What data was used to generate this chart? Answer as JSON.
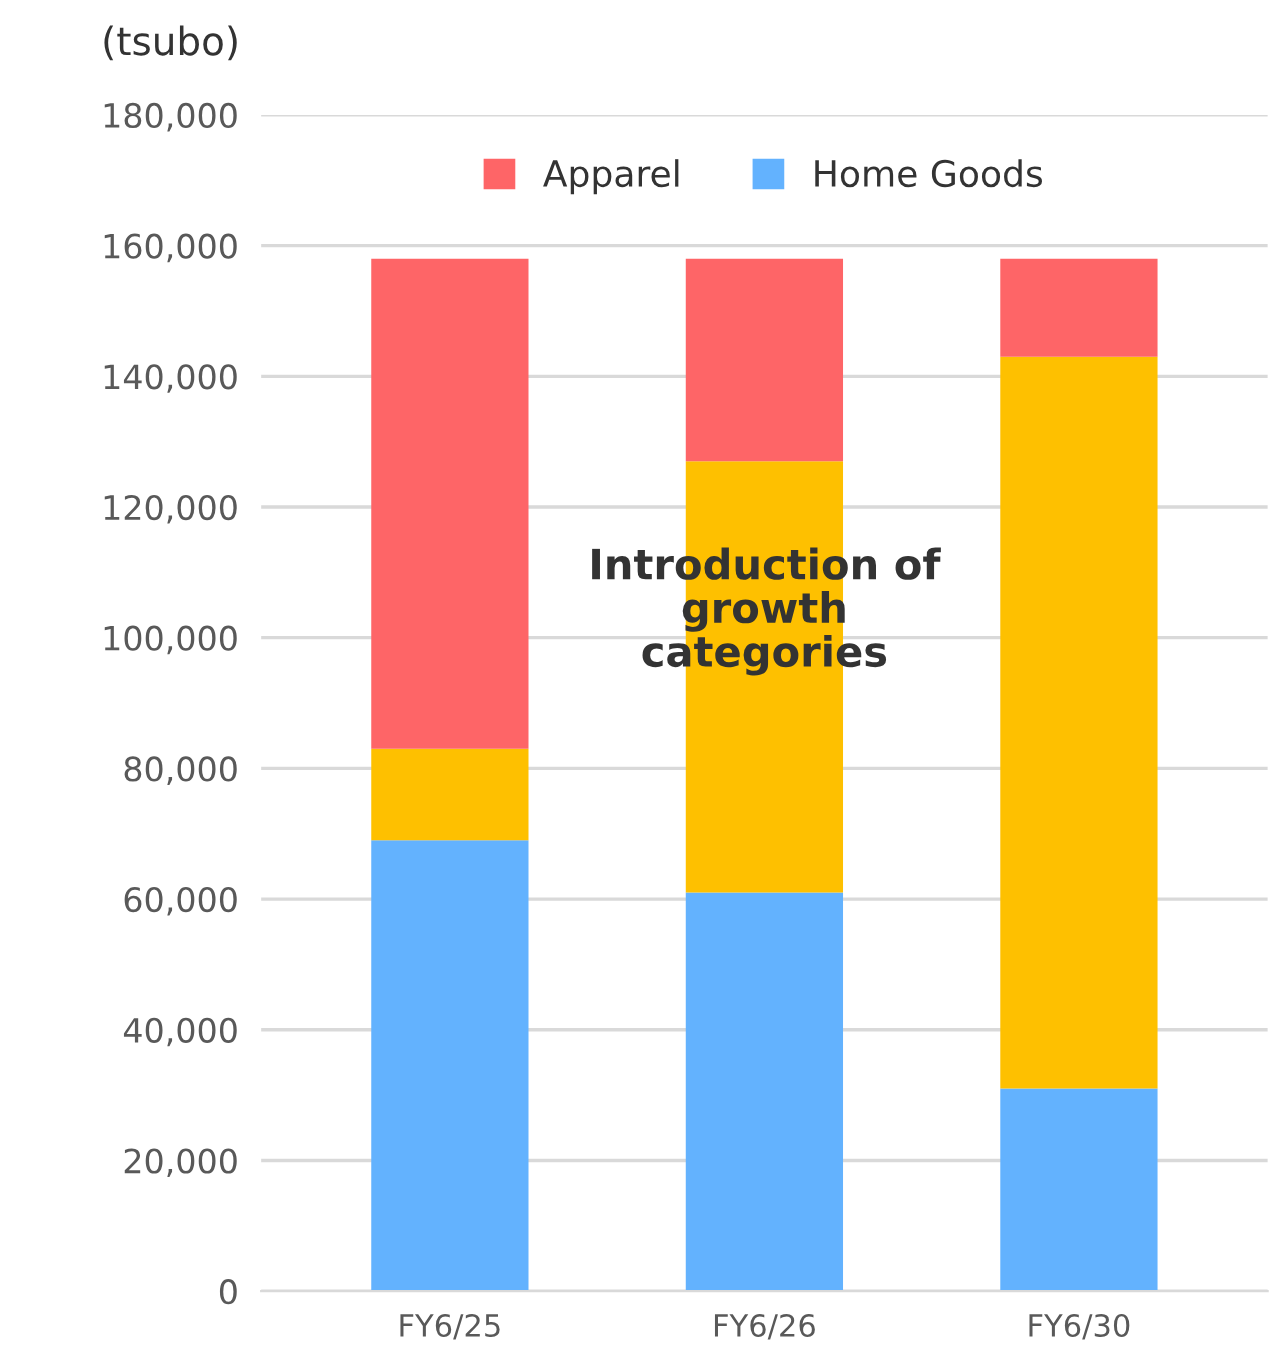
{
  "chart_data": {
    "type": "bar",
    "stacked": true,
    "ylabel": "(tsubo)",
    "categories": [
      "FY6/25",
      "FY6/26",
      "FY6/30"
    ],
    "series": [
      {
        "name": "Home Goods",
        "color": "#63b2fe",
        "values": [
          69000,
          61000,
          31000
        ]
      },
      {
        "color": "#fec000",
        "values": [
          14000,
          66000,
          112000
        ]
      },
      {
        "name": "Apparel",
        "color": "#fe6567",
        "values": [
          75000,
          31000,
          15000
        ]
      }
    ],
    "ylim": [
      0,
      180000
    ],
    "yticks": [
      0,
      {
        "value": 20000,
        "label": "20,000"
      },
      {
        "value": 40000,
        "label": "40,000"
      },
      {
        "value": 60000,
        "label": "60,000"
      },
      {
        "value": 80000,
        "label": "80,000"
      },
      {
        "value": 100000,
        "label": "100,000"
      },
      {
        "value": 120000,
        "label": "120,000"
      },
      {
        "value": 140000,
        "label": "140,000"
      },
      {
        "value": 160000,
        "label": "160,000"
      },
      {
        "value": 180000,
        "label": "180,000"
      }
    ],
    "grid": "y",
    "legend": "top",
    "annotations": [
      "Introduction of\ngrowth\ncategories"
    ]
  }
}
